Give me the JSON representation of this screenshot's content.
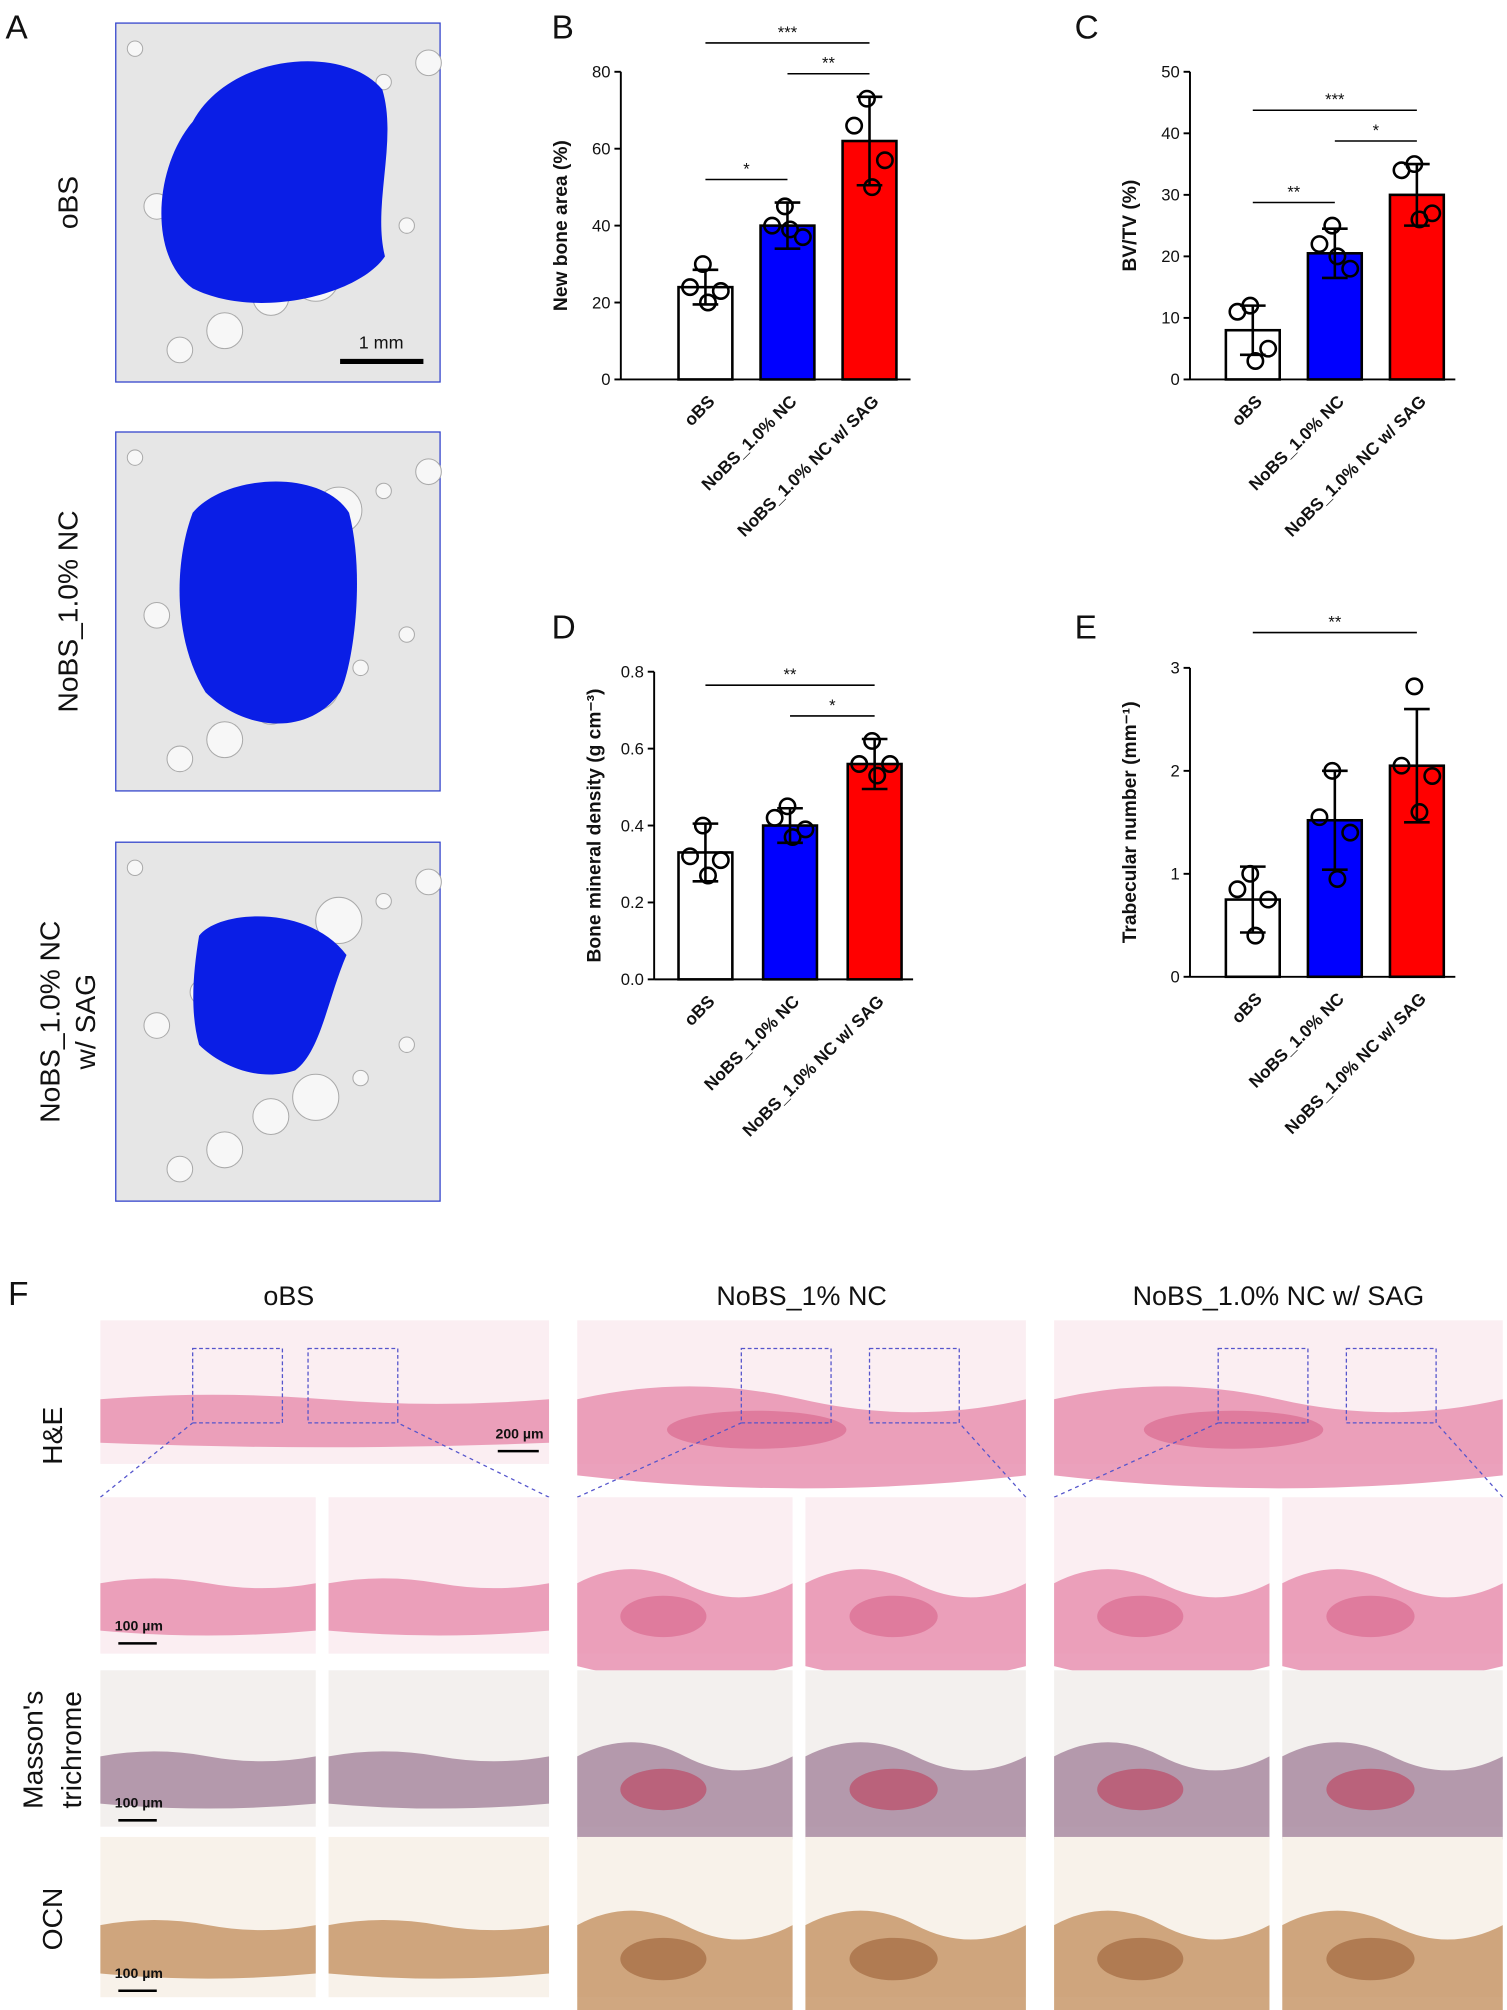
{
  "panel_a": {
    "label": "A",
    "rows": [
      [
        "oBS"
      ],
      [
        "NoBS_1.0% NC"
      ],
      [
        "NoBS_1.0% NC",
        "w/ SAG"
      ]
    ],
    "scale_bar": "1 mm"
  },
  "chart_data": [
    {
      "type": "bar",
      "label": "B",
      "ylabel": "New bone area (%)",
      "categories": [
        "oBS",
        "NoBS_1.0% NC",
        "NoBS_1.0% NC w/ SAG"
      ],
      "values": [
        24,
        40,
        62
      ],
      "errors": [
        4.5,
        6,
        11.5
      ],
      "points": [
        [
          30,
          24,
          23,
          20
        ],
        [
          45,
          40,
          37,
          39
        ],
        [
          73,
          66,
          57,
          50
        ]
      ],
      "colors": [
        "#ffffff",
        "#0000ff",
        "#ff0000"
      ],
      "ylim": [
        0,
        80
      ],
      "yticks": [
        0,
        20,
        40,
        60,
        80
      ],
      "significance": [
        {
          "pair": [
            0,
            1
          ],
          "label": "*"
        },
        {
          "pair": [
            1,
            2
          ],
          "label": "**"
        },
        {
          "pair": [
            0,
            2
          ],
          "label": "***"
        }
      ]
    },
    {
      "type": "bar",
      "label": "C",
      "ylabel": "BV/TV  (%)",
      "categories": [
        "oBS",
        "NoBS_1.0% NC",
        "NoBS_1.0% NC w/ SAG"
      ],
      "values": [
        8,
        20.5,
        30
      ],
      "errors": [
        4,
        4,
        5
      ],
      "points": [
        [
          12,
          11,
          5,
          3
        ],
        [
          25,
          22,
          18,
          20
        ],
        [
          35,
          34,
          27,
          26
        ]
      ],
      "colors": [
        "#ffffff",
        "#0000ff",
        "#ff0000"
      ],
      "ylim": [
        0,
        50
      ],
      "yticks": [
        0,
        10,
        20,
        30,
        40,
        50
      ],
      "significance": [
        {
          "pair": [
            0,
            1
          ],
          "label": "**"
        },
        {
          "pair": [
            1,
            2
          ],
          "label": "*"
        },
        {
          "pair": [
            0,
            2
          ],
          "label": "***"
        }
      ]
    },
    {
      "type": "bar",
      "label": "D",
      "ylabel": "Bone mineral density (g cm⁻³)",
      "categories": [
        "oBS",
        "NoBS_1.0% NC",
        "NoBS_1.0% NC w/ SAG"
      ],
      "values": [
        0.33,
        0.4,
        0.56
      ],
      "errors": [
        0.075,
        0.045,
        0.065
      ],
      "points": [
        [
          0.4,
          0.32,
          0.31,
          0.27
        ],
        [
          0.45,
          0.42,
          0.39,
          0.37
        ],
        [
          0.62,
          0.56,
          0.56,
          0.53
        ]
      ],
      "colors": [
        "#ffffff",
        "#0000ff",
        "#ff0000"
      ],
      "ylim": [
        0,
        0.8
      ],
      "yticks": [
        {
          "value": 0,
          "label": "0.0"
        },
        0.2,
        0.4,
        0.6,
        0.8
      ],
      "significance": [
        {
          "pair": [
            1,
            2
          ],
          "label": "*"
        },
        {
          "pair": [
            0,
            2
          ],
          "label": "**"
        }
      ]
    },
    {
      "type": "bar",
      "label": "E",
      "ylabel": "Trabecular number (mm⁻¹)",
      "categories": [
        "oBS",
        "NoBS_1.0% NC",
        "NoBS_1.0% NC w/ SAG"
      ],
      "values": [
        0.75,
        1.52,
        2.05
      ],
      "errors": [
        0.32,
        0.48,
        0.55
      ],
      "points": [
        [
          1,
          0.85,
          0.75,
          0.4
        ],
        [
          2,
          1.55,
          1.4,
          0.95
        ],
        [
          2.82,
          2.05,
          1.95,
          1.6
        ]
      ],
      "colors": [
        "#ffffff",
        "#0000ff",
        "#ff0000"
      ],
      "ylim": [
        0,
        3
      ],
      "yticks": [
        0,
        1,
        2,
        3
      ],
      "significance": [
        {
          "pair": [
            0,
            2
          ],
          "label": "**"
        }
      ]
    }
  ],
  "panel_f": {
    "label": "F",
    "columns": [
      "oBS",
      "NoBS_1% NC",
      "NoBS_1.0% NC w/ SAG"
    ],
    "rows": [
      [
        "H&E"
      ],
      [
        "Masson's",
        "trichrome"
      ],
      [
        "OCN"
      ]
    ],
    "scale_bars": [
      "200 µm",
      "100 µm",
      "100 µm",
      "100 µm"
    ]
  }
}
